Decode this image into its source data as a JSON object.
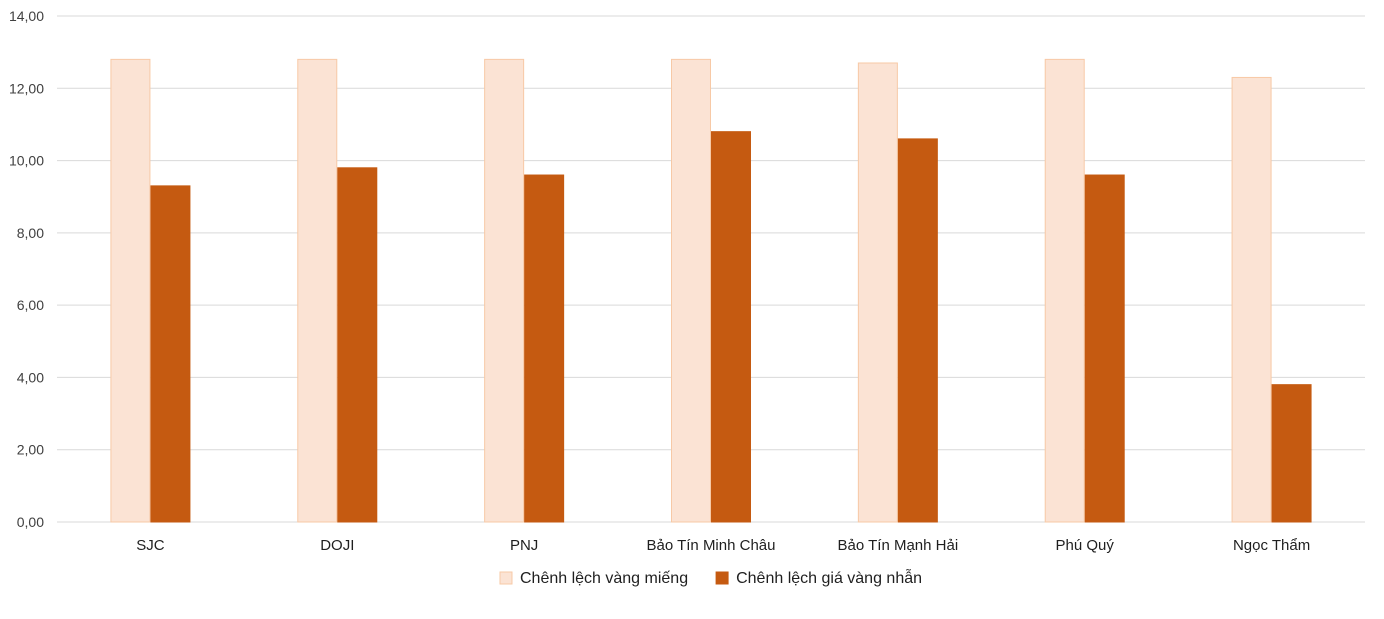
{
  "chart_data": {
    "type": "bar",
    "categories": [
      "SJC",
      "DOJI",
      "PNJ",
      "Bảo Tín Minh Châu",
      "Bảo Tín Mạnh Hải",
      "Phú Quý",
      "Ngọc Thẩm"
    ],
    "series": [
      {
        "name": "Chênh lệch vàng miếng",
        "values": [
          12.8,
          12.8,
          12.8,
          12.8,
          12.7,
          12.8,
          12.3
        ],
        "color": "#fbe3d4",
        "stroke": "#f7c9a6"
      },
      {
        "name": "Chênh lệch giá vàng nhẫn",
        "values": [
          9.3,
          9.8,
          9.6,
          10.8,
          10.6,
          9.6,
          3.8
        ],
        "color": "#c55a11",
        "stroke": "#c55a11"
      }
    ],
    "y_ticks": [
      "0,00",
      "2,00",
      "4,00",
      "6,00",
      "8,00",
      "10,00",
      "12,00",
      "14,00"
    ],
    "ylim": [
      0,
      14
    ],
    "grid": true,
    "gridline_color": "#d9d9d9",
    "legend_position": "bottom-center"
  }
}
